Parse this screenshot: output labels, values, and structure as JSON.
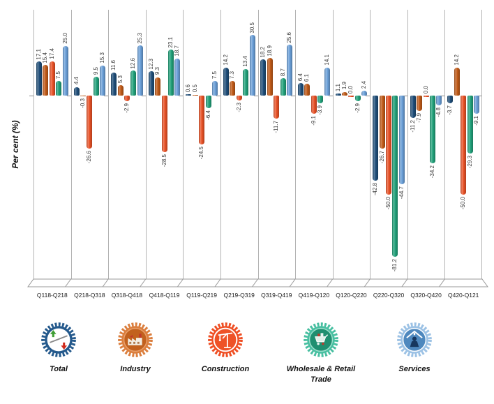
{
  "chart_data": {
    "type": "bar",
    "title": "",
    "ylabel": "Per cent (%)",
    "xlabel": "",
    "ylim": [
      -90,
      35
    ],
    "grid": "vertical category separators only",
    "legend_position": "bottom",
    "value_labels": "one decimal, rotated 90°",
    "categories": [
      "Q118-Q218",
      "Q218-Q318",
      "Q318-Q418",
      "Q418-Q119",
      "Q119-Q219",
      "Q219-Q319",
      "Q319-Q419",
      "Q419-Q120",
      "Q120-Q220",
      "Q220-Q320",
      "Q320-Q420",
      "Q420-Q121"
    ],
    "series": [
      {
        "name": "Total",
        "color": "#1F4E79",
        "values": [
          17.1,
          4.4,
          11.6,
          12.3,
          0.6,
          14.2,
          18.2,
          6.4,
          1.1,
          -42.8,
          -11.2,
          -3.7
        ]
      },
      {
        "name": "Industry",
        "color": "#C05A17",
        "values": [
          15.4,
          -0.3,
          5.3,
          9.3,
          0.5,
          7.3,
          18.9,
          6.1,
          1.9,
          -26.7,
          -7.9,
          14.2
        ]
      },
      {
        "name": "Construction",
        "color": "#E95126",
        "values": [
          17.4,
          -26.6,
          -2.9,
          -28.5,
          -24.5,
          -2.3,
          -11.7,
          -9.1,
          0.0,
          -50.0,
          0.0,
          -50.0
        ]
      },
      {
        "name": "Wholesale & Retail Trade",
        "color": "#21A17A",
        "values": [
          7.5,
          9.5,
          12.6,
          23.1,
          -6.4,
          13.4,
          8.7,
          -3.9,
          -2.9,
          -81.2,
          -34.2,
          -29.3
        ]
      },
      {
        "name": "Services",
        "color": "#6A9FD8",
        "values": [
          25.0,
          15.3,
          25.3,
          18.7,
          7.5,
          30.5,
          25.6,
          14.1,
          2.4,
          -44.7,
          -4.8,
          -9.1
        ]
      }
    ]
  },
  "colors": {
    "separator_line": "#b3b3b3",
    "floor_stroke": "#999999",
    "value_label": "#3a3a3a"
  },
  "legend": {
    "items": [
      {
        "label": "Total",
        "icon": "balance-trend-icon",
        "ring": "#24598C",
        "disc": "#FFFFFF"
      },
      {
        "label": "Industry",
        "icon": "factory-icon",
        "ring": "#DB7E3D",
        "disc": "#C2611E"
      },
      {
        "label": "Construction",
        "icon": "crane-icon",
        "ring": "#EF4E23",
        "disc": "#EE5227"
      },
      {
        "label": "Wholesale & Retail Trade",
        "icon": "shopping-cart-icon",
        "ring": "#48BFA1",
        "disc": "#1F8F70"
      },
      {
        "label": "Services",
        "icon": "person-house-icon",
        "ring": "#9CC2E5",
        "disc": "#4E88BE"
      }
    ]
  }
}
